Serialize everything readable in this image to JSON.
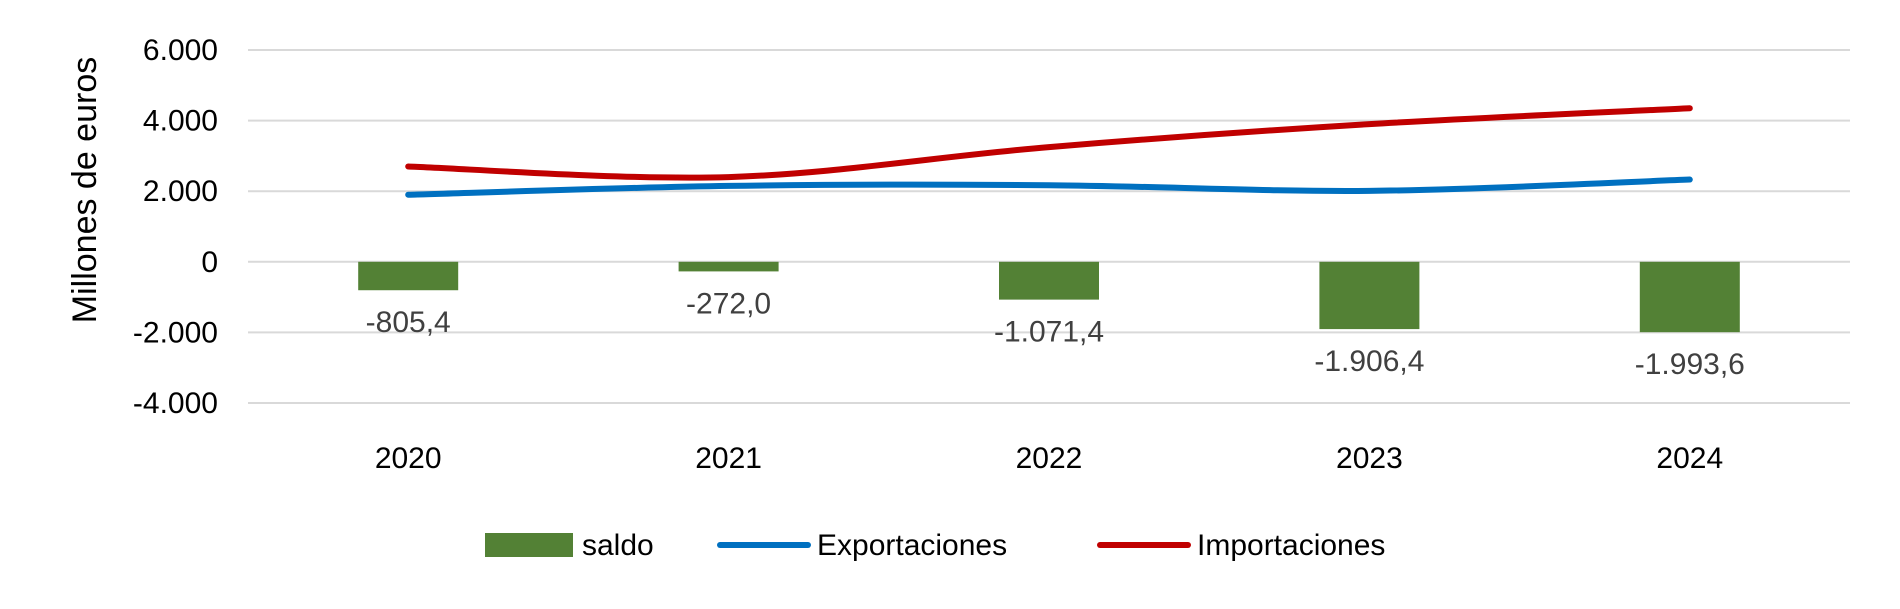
{
  "chart_data": {
    "type": "bar",
    "categories": [
      "2020",
      "2021",
      "2022",
      "2023",
      "2024"
    ],
    "series": [
      {
        "name": "saldo",
        "type": "bar",
        "color": "#538135",
        "values": [
          -805.4,
          -272.0,
          -1071.4,
          -1906.4,
          -1993.6
        ]
      },
      {
        "name": "Exportaciones",
        "type": "line",
        "color": "#0070C0",
        "values": [
          1900,
          2150,
          2170,
          2010,
          2330
        ]
      },
      {
        "name": "Importaciones",
        "type": "line",
        "color": "#C00000",
        "values": [
          2700,
          2400,
          3250,
          3900,
          4350
        ]
      }
    ],
    "data_labels": [
      "-805,4",
      "-272,0",
      "-1.071,4",
      "-1.906,4",
      "-1.993,6"
    ],
    "title": "",
    "xlabel": "",
    "ylabel": "Millones de euros",
    "ylim": [
      -4000,
      6000
    ],
    "yticks": [
      6000,
      4000,
      2000,
      0,
      -2000,
      -4000
    ],
    "ytick_labels": [
      "6.000",
      "4.000",
      "2.000",
      "0",
      "-2.000",
      "-4.000"
    ],
    "grid": true,
    "legend": {
      "position": "bottom",
      "entries": [
        "saldo",
        "Exportaciones",
        "Importaciones"
      ]
    }
  }
}
